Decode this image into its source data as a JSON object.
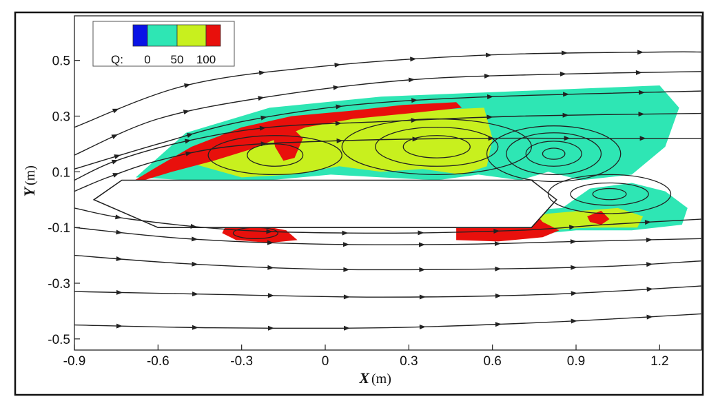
{
  "chart_data": {
    "type": "contour",
    "title": "",
    "xlabel": {
      "symbol": "X",
      "unit": "(m)"
    },
    "ylabel": {
      "symbol": "Y",
      "unit": "(m)"
    },
    "xlim": [
      -0.9,
      1.35
    ],
    "ylim": [
      -0.54,
      0.66
    ],
    "xticks": [
      -0.9,
      -0.6,
      -0.3,
      0,
      0.3,
      0.6,
      0.9,
      1.2
    ],
    "xtick_labels": [
      "-0.9",
      "-0.6",
      "-0.3",
      "0",
      "0.3",
      "0.6",
      "0.9",
      "1.2"
    ],
    "yticks": [
      0.5,
      0.3,
      0.1,
      -0.1,
      -0.3,
      -0.5
    ],
    "ytick_labels": [
      "0.5",
      "0.3",
      "0.1",
      "-0.1",
      "-0.3",
      "-0.5"
    ],
    "grid": false,
    "legend": {
      "placement": "top-left",
      "variable_label": "Q:",
      "levels": [
        "0",
        "50",
        "100"
      ],
      "colors": [
        "#0a14e6",
        "#2ee6b4",
        "#c8f01e",
        "#e8100c"
      ]
    },
    "body": {
      "outline": [
        [
          -0.83,
          0.0
        ],
        [
          -0.73,
          0.07
        ],
        [
          0.74,
          0.07
        ],
        [
          0.83,
          0.0
        ],
        [
          0.74,
          -0.1
        ],
        [
          -0.6,
          -0.1
        ]
      ]
    },
    "regions": [
      {
        "level": "50",
        "color": "#2ee6b4",
        "points": [
          [
            -0.68,
            0.08
          ],
          [
            -0.5,
            0.24
          ],
          [
            -0.2,
            0.33
          ],
          [
            0.2,
            0.37
          ],
          [
            0.7,
            0.39
          ],
          [
            1.2,
            0.41
          ],
          [
            1.27,
            0.33
          ],
          [
            1.22,
            0.19
          ],
          [
            1.1,
            0.09
          ],
          [
            0.92,
            0.07
          ],
          [
            0.8,
            0.1
          ],
          [
            0.7,
            0.07
          ],
          [
            0.55,
            0.09
          ],
          [
            0.4,
            0.07
          ],
          [
            0.2,
            0.08
          ],
          [
            0.02,
            0.09
          ],
          [
            -0.2,
            0.07
          ],
          [
            -0.5,
            0.07
          ]
        ]
      },
      {
        "level": "50",
        "color": "#2ee6b4",
        "points": [
          [
            0.48,
            -0.09
          ],
          [
            0.7,
            -0.04
          ],
          [
            0.85,
            -0.03
          ],
          [
            0.95,
            0.04
          ],
          [
            1.1,
            0.06
          ],
          [
            1.22,
            0.03
          ],
          [
            1.3,
            -0.03
          ],
          [
            1.28,
            -0.09
          ],
          [
            1.1,
            -0.11
          ],
          [
            0.9,
            -0.11
          ],
          [
            0.7,
            -0.13
          ],
          [
            0.48,
            -0.12
          ]
        ]
      },
      {
        "level": "75",
        "color": "#c8f01e",
        "points": [
          [
            -0.55,
            0.15
          ],
          [
            -0.3,
            0.26
          ],
          [
            0.0,
            0.3
          ],
          [
            0.35,
            0.32
          ],
          [
            0.57,
            0.33
          ],
          [
            0.6,
            0.22
          ],
          [
            0.58,
            0.12
          ],
          [
            0.49,
            0.09
          ],
          [
            0.35,
            0.11
          ],
          [
            0.2,
            0.1
          ],
          [
            0.05,
            0.12
          ],
          [
            -0.12,
            0.09
          ],
          [
            -0.3,
            0.08
          ]
        ]
      },
      {
        "level": "75",
        "color": "#c8f01e",
        "points": [
          [
            0.55,
            -0.09
          ],
          [
            0.7,
            -0.07
          ],
          [
            0.8,
            -0.05
          ],
          [
            0.92,
            -0.04
          ],
          [
            1.05,
            -0.03
          ],
          [
            1.14,
            -0.06
          ],
          [
            1.12,
            -0.1
          ],
          [
            0.95,
            -0.1
          ],
          [
            0.78,
            -0.11
          ],
          [
            0.55,
            -0.12
          ]
        ]
      },
      {
        "level": "100",
        "color": "#e8100c",
        "points": [
          [
            -0.7,
            0.06
          ],
          [
            -0.6,
            0.12
          ],
          [
            -0.48,
            0.19
          ],
          [
            -0.3,
            0.26
          ],
          [
            -0.12,
            0.3
          ],
          [
            0.1,
            0.32
          ],
          [
            0.28,
            0.34
          ],
          [
            0.47,
            0.35
          ],
          [
            0.49,
            0.33
          ],
          [
            0.3,
            0.31
          ],
          [
            0.1,
            0.29
          ],
          [
            -0.07,
            0.26
          ],
          [
            -0.17,
            0.22
          ],
          [
            -0.27,
            0.18
          ],
          [
            -0.4,
            0.14
          ],
          [
            -0.55,
            0.1
          ],
          [
            -0.65,
            0.07
          ]
        ]
      },
      {
        "level": "100",
        "color": "#e8100c",
        "points": [
          [
            -0.19,
            0.24
          ],
          [
            -0.13,
            0.27
          ],
          [
            -0.08,
            0.22
          ],
          [
            -0.11,
            0.15
          ],
          [
            -0.15,
            0.14
          ],
          [
            -0.18,
            0.19
          ]
        ]
      },
      {
        "level": "100",
        "color": "#e8100c",
        "points": [
          [
            -0.36,
            -0.1
          ],
          [
            -0.27,
            -0.085
          ],
          [
            -0.14,
            -0.11
          ],
          [
            -0.1,
            -0.145
          ],
          [
            -0.2,
            -0.155
          ],
          [
            -0.32,
            -0.145
          ],
          [
            -0.37,
            -0.12
          ]
        ]
      },
      {
        "level": "100",
        "color": "#e8100c",
        "points": [
          [
            0.47,
            -0.09
          ],
          [
            0.6,
            -0.09
          ],
          [
            0.7,
            -0.08
          ],
          [
            0.75,
            -0.045
          ],
          [
            0.78,
            -0.08
          ],
          [
            0.84,
            -0.11
          ],
          [
            0.78,
            -0.135
          ],
          [
            0.62,
            -0.15
          ],
          [
            0.47,
            -0.145
          ]
        ]
      },
      {
        "level": "100",
        "color": "#e8100c",
        "points": [
          [
            0.94,
            -0.06
          ],
          [
            0.99,
            -0.04
          ],
          [
            1.02,
            -0.07
          ],
          [
            0.99,
            -0.09
          ],
          [
            0.95,
            -0.08
          ]
        ]
      }
    ],
    "vortex_cores": [
      {
        "cx": 0.4,
        "cy": 0.19,
        "radii": [
          [
            0.12,
            0.04
          ],
          [
            0.22,
            0.07
          ],
          [
            0.34,
            0.1
          ]
        ]
      },
      {
        "cx": 0.82,
        "cy": 0.165,
        "radii": [
          [
            0.04,
            0.02
          ],
          [
            0.1,
            0.045
          ],
          [
            0.17,
            0.075
          ],
          [
            0.24,
            0.1
          ]
        ]
      },
      {
        "cx": 1.02,
        "cy": 0.02,
        "radii": [
          [
            0.06,
            0.02
          ],
          [
            0.14,
            0.04
          ],
          [
            0.22,
            0.07
          ]
        ]
      },
      {
        "cx": -0.18,
        "cy": 0.16,
        "radii": [
          [
            0.1,
            0.04
          ],
          [
            0.24,
            0.07
          ]
        ]
      },
      {
        "cx": -0.25,
        "cy": -0.12,
        "radii": [
          [
            0.08,
            0.02
          ]
        ]
      }
    ],
    "streamlines": [
      [
        [
          -0.9,
          0.26
        ],
        [
          -0.5,
          0.41
        ],
        [
          0.0,
          0.48
        ],
        [
          0.6,
          0.52
        ],
        [
          1.2,
          0.53
        ],
        [
          1.35,
          0.53
        ]
      ],
      [
        [
          -0.9,
          0.16
        ],
        [
          -0.6,
          0.29
        ],
        [
          -0.2,
          0.37
        ],
        [
          0.3,
          0.43
        ],
        [
          0.8,
          0.45
        ],
        [
          1.35,
          0.46
        ]
      ],
      [
        [
          -0.9,
          0.11
        ],
        [
          -0.6,
          0.2
        ],
        [
          -0.3,
          0.28
        ],
        [
          0.1,
          0.34
        ],
        [
          0.6,
          0.37
        ],
        [
          1.35,
          0.39
        ]
      ],
      [
        [
          -0.9,
          0.07
        ],
        [
          -0.75,
          0.14
        ],
        [
          -0.5,
          0.21
        ],
        [
          -0.2,
          0.26
        ],
        [
          0.2,
          0.28
        ],
        [
          0.7,
          0.3
        ],
        [
          1.35,
          0.31
        ]
      ],
      [
        [
          -0.9,
          0.03
        ],
        [
          -0.78,
          0.08
        ],
        [
          -0.6,
          0.14
        ],
        [
          -0.35,
          0.19
        ],
        [
          0.0,
          0.21
        ],
        [
          0.5,
          0.22
        ],
        [
          1.0,
          0.22
        ],
        [
          1.35,
          0.22
        ]
      ],
      [
        [
          -0.9,
          -0.03
        ],
        [
          -0.7,
          -0.07
        ],
        [
          -0.3,
          -0.11
        ],
        [
          0.2,
          -0.12
        ],
        [
          0.7,
          -0.11
        ],
        [
          1.0,
          -0.09
        ],
        [
          1.35,
          -0.07
        ]
      ],
      [
        [
          -0.9,
          -0.1
        ],
        [
          -0.5,
          -0.14
        ],
        [
          0.0,
          -0.16
        ],
        [
          0.5,
          -0.16
        ],
        [
          0.9,
          -0.15
        ],
        [
          1.35,
          -0.14
        ]
      ],
      [
        [
          -0.9,
          -0.2
        ],
        [
          -0.5,
          -0.23
        ],
        [
          0.0,
          -0.25
        ],
        [
          0.5,
          -0.25
        ],
        [
          1.0,
          -0.24
        ],
        [
          1.35,
          -0.22
        ]
      ],
      [
        [
          -0.9,
          -0.33
        ],
        [
          -0.4,
          -0.34
        ],
        [
          0.2,
          -0.35
        ],
        [
          0.8,
          -0.34
        ],
        [
          1.35,
          -0.31
        ]
      ],
      [
        [
          -0.9,
          -0.45
        ],
        [
          -0.4,
          -0.46
        ],
        [
          0.2,
          -0.46
        ],
        [
          0.8,
          -0.44
        ],
        [
          1.35,
          -0.41
        ]
      ]
    ]
  }
}
